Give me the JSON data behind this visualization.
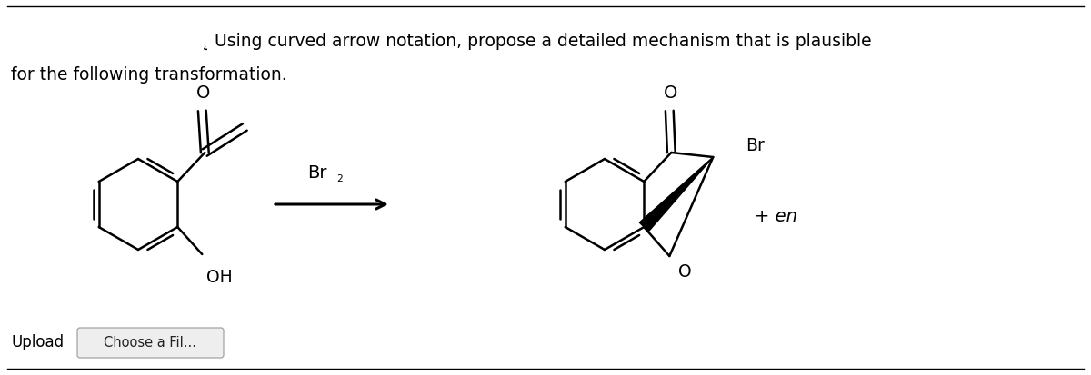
{
  "bg_color": "#ffffff",
  "text_line1": "Using curved arrow notation, propose a detailed mechanism that is plausible",
  "text_line2": "for the following transformation.",
  "reagent": "Br₂",
  "br_label": "Br",
  "en_label": "+ en",
  "upload_label": "Upload",
  "choose_label": "Choose a Fil...",
  "font_size_main": 13.5,
  "font_size_atom": 13,
  "font_size_reagent": 14
}
